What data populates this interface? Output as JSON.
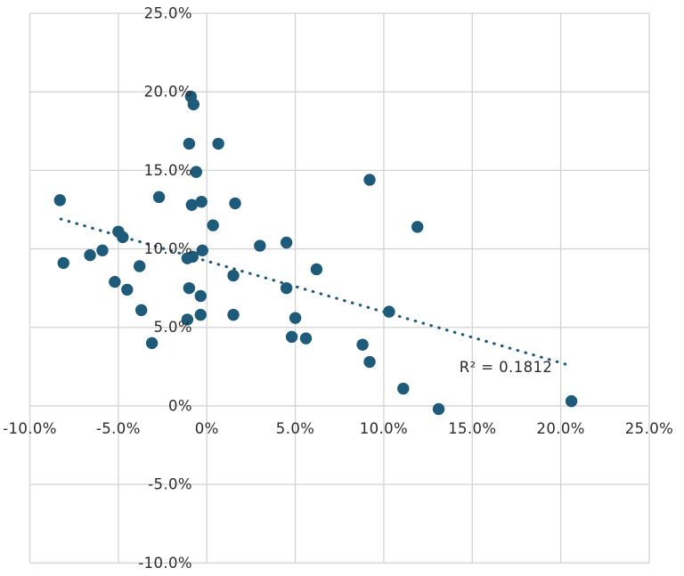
{
  "chart_data": {
    "type": "scatter",
    "title": "",
    "xlabel": "",
    "ylabel": "",
    "xlim": [
      -10,
      25
    ],
    "ylim": [
      -10,
      25
    ],
    "grid": true,
    "legend": "none",
    "x_ticks": [
      {
        "value": -10,
        "label": "-10.0%"
      },
      {
        "value": -5,
        "label": "-5.0%"
      },
      {
        "value": 0,
        "label": "0%"
      },
      {
        "value": 5,
        "label": "5.0%"
      },
      {
        "value": 10,
        "label": "10.0%"
      },
      {
        "value": 15,
        "label": "15.0%"
      },
      {
        "value": 20,
        "label": "20.0%"
      },
      {
        "value": 25,
        "label": "25.0%"
      }
    ],
    "y_ticks": [
      {
        "value": 25,
        "label": "25.0%"
      },
      {
        "value": 20,
        "label": "20.0%"
      },
      {
        "value": 15,
        "label": "15.0%"
      },
      {
        "value": 10,
        "label": "10.0%"
      },
      {
        "value": 5,
        "label": "5.0%"
      },
      {
        "value": 0,
        "label": "0%"
      },
      {
        "value": -5,
        "label": "-5.0%"
      },
      {
        "value": -10,
        "label": "-10.0%"
      }
    ],
    "points": [
      [
        -8.3,
        13.1
      ],
      [
        -8.1,
        9.1
      ],
      [
        -6.6,
        9.6
      ],
      [
        -5.9,
        9.9
      ],
      [
        -5.0,
        11.1
      ],
      [
        -4.75,
        10.75
      ],
      [
        -5.2,
        7.9
      ],
      [
        -4.5,
        7.4
      ],
      [
        -3.8,
        8.9
      ],
      [
        -3.7,
        6.1
      ],
      [
        -3.1,
        4.0
      ],
      [
        -2.7,
        13.3
      ],
      [
        -0.9,
        19.7
      ],
      [
        -0.75,
        19.2
      ],
      [
        -1.0,
        16.7
      ],
      [
        0.65,
        16.7
      ],
      [
        -0.6,
        14.9
      ],
      [
        -0.85,
        12.8
      ],
      [
        -0.3,
        13.0
      ],
      [
        1.6,
        12.9
      ],
      [
        0.35,
        11.5
      ],
      [
        -0.25,
        9.9
      ],
      [
        -0.8,
        9.5
      ],
      [
        -1.1,
        9.4
      ],
      [
        -1.0,
        7.5
      ],
      [
        -0.35,
        7.0
      ],
      [
        -0.35,
        5.8
      ],
      [
        -1.1,
        5.5
      ],
      [
        1.5,
        8.3
      ],
      [
        1.5,
        5.8
      ],
      [
        3.0,
        10.2
      ],
      [
        4.5,
        10.4
      ],
      [
        4.5,
        7.5
      ],
      [
        5.0,
        5.6
      ],
      [
        4.8,
        4.4
      ],
      [
        5.6,
        4.3
      ],
      [
        6.2,
        8.7
      ],
      [
        9.2,
        14.4
      ],
      [
        11.9,
        11.4
      ],
      [
        10.3,
        6.0
      ],
      [
        8.8,
        3.9
      ],
      [
        9.2,
        2.8
      ],
      [
        11.1,
        1.1
      ],
      [
        13.1,
        -0.2
      ],
      [
        20.6,
        0.3
      ]
    ],
    "trendline": {
      "style": "dotted",
      "x1": -8.25,
      "y1": 11.9,
      "x2": 20.6,
      "y2": 2.55
    },
    "annotation": {
      "text": "R² = 0.1812",
      "x": 16.9,
      "y": 2.5
    },
    "colors": {
      "point": "#1E5B7B",
      "trendline": "#1E5B7B",
      "gridline": "#D3D3D3",
      "label_text": "#2B2B2B",
      "background": "#FFFFFF"
    },
    "point_radius": 6.7
  }
}
